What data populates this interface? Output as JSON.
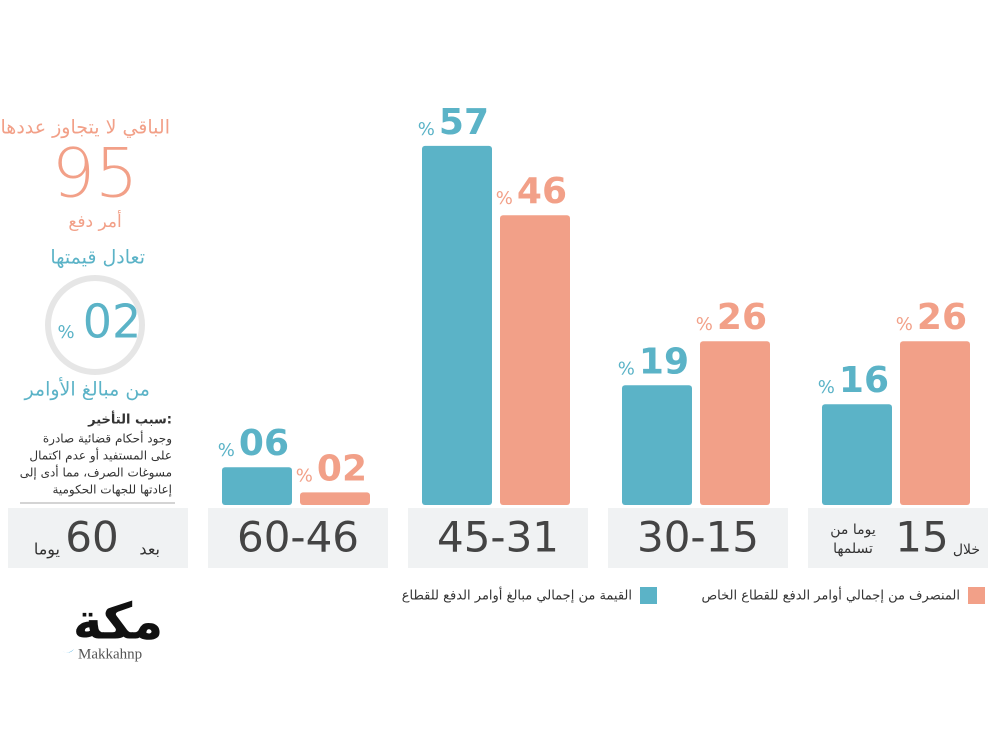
{
  "chart_data": {
    "type": "bar",
    "categories": [
      "15",
      "30-15",
      "45-31",
      "60-46"
    ],
    "first_category_prefix": "خلال",
    "first_category_suffix": [
      "يوما من",
      "تسلمها"
    ],
    "unit": "%",
    "series": [
      {
        "name": "القيمة من إجمالي مبالغ أوامر الدفع للقطاع",
        "color": "#5bb3c7",
        "values": [
          16,
          19,
          57,
          6
        ],
        "value_labels": [
          "16",
          "19",
          "57",
          "06"
        ]
      },
      {
        "name": "المنصرف من إجمالي أوامر الدفع للقطاع الخاص",
        "color": "#f2a088",
        "values": [
          26,
          26,
          46,
          2
        ],
        "value_labels": [
          "26",
          "26",
          "46",
          "02"
        ]
      }
    ]
  },
  "side_panel": {
    "after_box": {
      "prefix": "بعد",
      "number": "60",
      "suffix": "يوما"
    },
    "remaining": "الباقي لا يتجاوز عددها",
    "count": "95",
    "count_unit": "أمر دفع",
    "equals": "تعادل قيمتها",
    "share": "02",
    "share_unit": "%",
    "share_of": "من مبالغ الأوامر",
    "reason_title": "سبب التأخير:",
    "reason_lines": [
      "وجود أحكام قضائية صادرة",
      "على المستفيد أو عدم اكتمال",
      "مسوغات الصرف، مما أدى إلى",
      "إعادتها للجهات الحكومية"
    ]
  },
  "logo": {
    "name": "مكة",
    "handle": "Makkahnp"
  }
}
